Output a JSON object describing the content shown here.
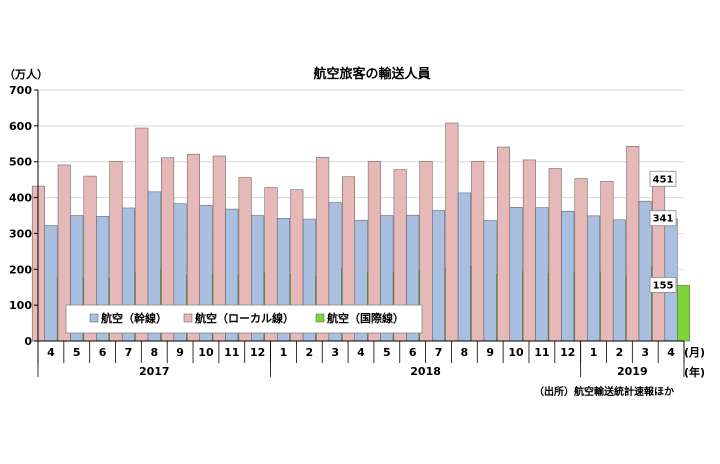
{
  "chart_data": {
    "type": "bar",
    "title": "航空旅客の輸送人員",
    "ylabel": "（万人）",
    "ylim": [
      0,
      700
    ],
    "yticks": [
      "0",
      "100",
      "200",
      "300",
      "400",
      "500",
      "600",
      "700"
    ],
    "x_unit_month": "(月)",
    "x_unit_year": "(年)",
    "source": "（出所）航空輸送統計速報ほか",
    "categories": [
      "4",
      "5",
      "6",
      "7",
      "8",
      "9",
      "10",
      "11",
      "12",
      "1",
      "2",
      "3",
      "4",
      "5",
      "6",
      "7",
      "8",
      "9",
      "10",
      "11",
      "12",
      "1",
      "2",
      "3",
      "4"
    ],
    "years": [
      {
        "label": "2017",
        "start": 0,
        "end": 8
      },
      {
        "label": "2018",
        "start": 9,
        "end": 20
      },
      {
        "label": "2019",
        "start": 21,
        "end": 24
      }
    ],
    "series": [
      {
        "name": "航空（幹線）",
        "color": "#a9bfe0",
        "values": [
          322,
          350,
          348,
          371,
          416,
          383,
          378,
          368,
          350,
          342,
          340,
          386,
          337,
          350,
          351,
          364,
          413,
          336,
          373,
          372,
          362,
          349,
          338,
          390,
          341
        ]
      },
      {
        "name": "航空（ローカル線）",
        "color": "#e6b8b7",
        "values": [
          432,
          491,
          460,
          501,
          594,
          511,
          521,
          516,
          456,
          428,
          422,
          512,
          458,
          501,
          478,
          501,
          608,
          501,
          541,
          505,
          481,
          453,
          445,
          543,
          451
        ]
      },
      {
        "name": "航空（国際線）",
        "color": "#7ed43a",
        "values": [
          178,
          174,
          175,
          190,
          200,
          183,
          188,
          183,
          189,
          186,
          180,
          202,
          191,
          191,
          195,
          203,
          209,
          186,
          193,
          189,
          190,
          191,
          182,
          205,
          155
        ]
      }
    ],
    "annotations": [
      {
        "series": 1,
        "index": 24,
        "text": "451"
      },
      {
        "series": 0,
        "index": 24,
        "text": "341"
      },
      {
        "series": 2,
        "index": 24,
        "text": "155"
      }
    ],
    "legend_position": "bottom-left"
  }
}
